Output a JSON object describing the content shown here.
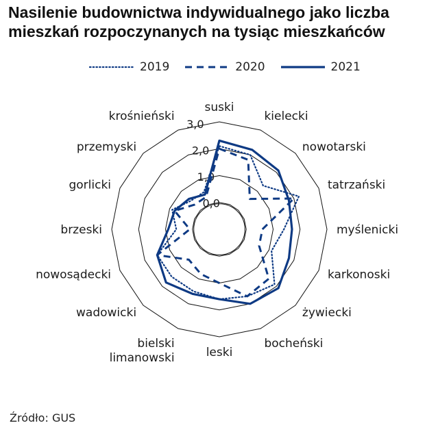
{
  "title_line1": "Nasilenie budownictwa indywidualnego jako liczba",
  "title_line2": "mieszkań rozpoczynanych na tysiąc mieszkańców",
  "source": "Źródło: GUS",
  "colors": {
    "series": "#0e3a84",
    "grid": "#111111",
    "text": "#1a1a1a"
  },
  "chart_data": {
    "type": "radar",
    "title": "Nasilenie budownictwa indywidualnego jako liczba mieszkań rozpoczynanych na tysiąc mieszkańców",
    "categories": [
      "suski",
      "kielecki",
      "nowotarski",
      "tatrzański",
      "myślenicki",
      "karkonoski",
      "żywiecki",
      "bocheński",
      "leski",
      "bielski limanowski",
      "wadowicki",
      "nowosądecki",
      "brzeski",
      "gorlicki",
      "przemyski",
      "krośnieński"
    ],
    "tick_labels": [
      "0,0",
      "1,0",
      "2,0",
      "3,0"
    ],
    "rmin": -1.0,
    "rmax": 3.0,
    "legend_position": "top",
    "series": [
      {
        "name": "2019",
        "style": "dotted",
        "values": [
          2.1,
          2.0,
          1.3,
          2.2,
          1.4,
          1.1,
          1.9,
          1.7,
          1.6,
          1.5,
          1.5,
          1.5,
          0.6,
          0.9,
          0.5,
          0.5
        ]
      },
      {
        "name": "2020",
        "style": "dashed",
        "values": [
          2.0,
          1.8,
          0.6,
          2.0,
          0.6,
          0.6,
          1.6,
          1.7,
          1.0,
          0.8,
          0.6,
          1.5,
          0.1,
          0.8,
          0.3,
          0.3
        ]
      },
      {
        "name": "2021",
        "style": "solid",
        "values": [
          2.3,
          2.2,
          2.1,
          1.8,
          1.7,
          1.8,
          2.1,
          2.0,
          1.6,
          1.6,
          1.8,
          1.5,
          0.9,
          0.8,
          0.6,
          0.4
        ]
      }
    ]
  }
}
